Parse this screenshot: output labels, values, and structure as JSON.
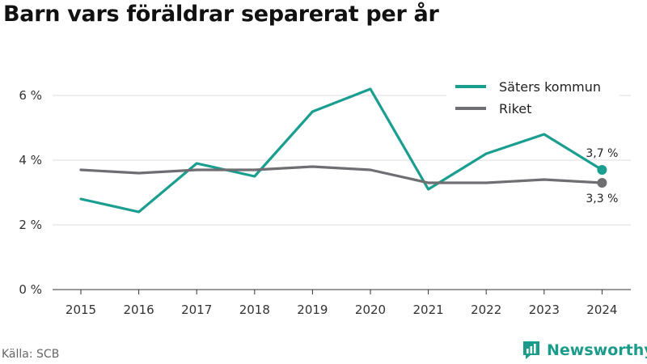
{
  "page": {
    "source": "Källa: SCB",
    "brand": "Newsworthy"
  },
  "chart_data": {
    "type": "line",
    "title": "Barn vars föräldrar separerat per år",
    "xlabel": "",
    "ylabel": "",
    "categories": [
      "2015",
      "2016",
      "2017",
      "2018",
      "2019",
      "2020",
      "2021",
      "2022",
      "2023",
      "2024"
    ],
    "series": [
      {
        "name": "Säters kommun",
        "color": "#1a9e90",
        "values": [
          2.8,
          2.4,
          3.9,
          3.5,
          5.5,
          6.2,
          3.1,
          4.2,
          4.8,
          3.7
        ],
        "end_label": "3,7 %"
      },
      {
        "name": "Riket",
        "color": "#6f6f73",
        "values": [
          3.7,
          3.6,
          3.7,
          3.7,
          3.8,
          3.7,
          3.3,
          3.3,
          3.4,
          3.3
        ],
        "end_label": "3,3 %"
      }
    ],
    "yticks": [
      0,
      2,
      4,
      6
    ],
    "ytick_labels": [
      "0 %",
      "2 %",
      "4 %",
      "6 %"
    ],
    "ylim": [
      0,
      7
    ],
    "grid": "horizontal",
    "legend_position": "top-right"
  }
}
